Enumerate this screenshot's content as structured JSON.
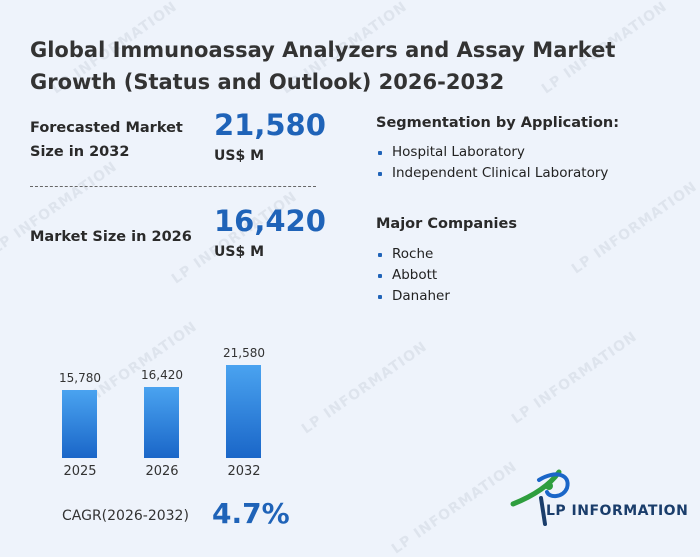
{
  "title": "Global Immunoassay Analyzers and Assay Market Growth (Status and Outlook) 2026-2032",
  "forecast": {
    "label_line1": "Forecasted Market",
    "label_line2": "Size in 2032",
    "value": "21,580",
    "unit": "US$ M"
  },
  "current": {
    "label": "Market Size in 2026",
    "value": "16,420",
    "unit": "US$ M"
  },
  "segmentation": {
    "heading": "Segmentation by Application:",
    "items": [
      "Hospital Laboratory",
      "Independent Clinical Laboratory"
    ]
  },
  "companies": {
    "heading": "Major Companies",
    "items": [
      "Roche",
      "Abbott",
      "Danaher"
    ]
  },
  "chart_data": {
    "type": "bar",
    "categories": [
      "2025",
      "2026",
      "2032"
    ],
    "values": [
      15780,
      16420,
      21580
    ],
    "value_labels": [
      "15,780",
      "16,420",
      "21,580"
    ],
    "title": "",
    "xlabel": "",
    "ylabel": "",
    "ylim": [
      0,
      21580
    ],
    "grid": false,
    "colors": [
      "#4aa3f0",
      "#1a66c8"
    ]
  },
  "cagr": {
    "label": "CAGR(2026-2032)",
    "value": "4.7%"
  },
  "logo": {
    "text": "LP INFORMATION",
    "watermark_text": "LP INFORMATION",
    "colors": [
      "#2e9e3e",
      "#1a66c8",
      "#1a3d6b"
    ]
  }
}
